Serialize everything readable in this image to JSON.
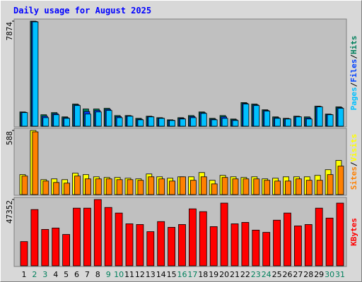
{
  "title": "Daily usage for August 2025",
  "chart_data": [
    {
      "type": "bar",
      "legend_separator": "/",
      "ylim": [
        0,
        7874
      ],
      "yticks": [
        7874
      ],
      "series": [
        {
          "name": "Hits",
          "color": "#00805c",
          "values": [
            1070,
            7874,
            860,
            1020,
            700,
            1660,
            1290,
            1290,
            1340,
            800,
            800,
            590,
            750,
            640,
            480,
            640,
            800,
            1070,
            590,
            800,
            540,
            1770,
            1660,
            1230,
            700,
            590,
            750,
            700,
            1500,
            910,
            1450
          ]
        },
        {
          "name": "Files",
          "color": "#0040ff",
          "values": [
            1040,
            7850,
            750,
            940,
            640,
            1600,
            1100,
            1180,
            1260,
            720,
            770,
            530,
            720,
            610,
            450,
            590,
            720,
            1010,
            530,
            700,
            480,
            1710,
            1600,
            1180,
            640,
            560,
            720,
            620,
            1470,
            880,
            1390
          ]
        },
        {
          "name": "Pages",
          "color": "#00c0ff",
          "values": [
            1020,
            7820,
            640,
            860,
            590,
            1550,
            910,
            1070,
            1180,
            640,
            750,
            480,
            700,
            590,
            430,
            540,
            640,
            960,
            480,
            590,
            430,
            1660,
            1550,
            1130,
            590,
            540,
            700,
            540,
            1450,
            860,
            1340
          ]
        }
      ]
    },
    {
      "type": "bar",
      "legend_separator": "/",
      "ylim": [
        0,
        588
      ],
      "yticks": [
        588
      ],
      "series": [
        {
          "name": "Visits",
          "color": "#ffff00",
          "values": [
            183,
            588,
            137,
            144,
            137,
            196,
            183,
            163,
            157,
            157,
            150,
            144,
            189,
            163,
            150,
            163,
            163,
            202,
            131,
            176,
            163,
            157,
            163,
            144,
            150,
            163,
            163,
            163,
            176,
            228,
            313
          ]
        },
        {
          "name": "Sites",
          "color": "#ff8000",
          "values": [
            170,
            575,
            124,
            111,
            105,
            170,
            144,
            144,
            144,
            137,
            137,
            131,
            163,
            144,
            124,
            163,
            131,
            163,
            98,
            157,
            144,
            144,
            144,
            131,
            124,
            124,
            144,
            131,
            131,
            183,
            261
          ]
        }
      ]
    },
    {
      "type": "bar",
      "ylim": [
        0,
        47352
      ],
      "yticks": [
        47352
      ],
      "categories": [
        "1",
        "2",
        "3",
        "4",
        "5",
        "6",
        "7",
        "8",
        "9",
        "10",
        "11",
        "12",
        "13",
        "14",
        "15",
        "16",
        "17",
        "18",
        "19",
        "20",
        "21",
        "22",
        "23",
        "24",
        "25",
        "26",
        "27",
        "28",
        "29",
        "30",
        "31"
      ],
      "category_colors": [
        "#000000",
        "#00805c",
        "#00805c",
        "#000000",
        "#000000",
        "#000000",
        "#000000",
        "#000000",
        "#00805c",
        "#00805c",
        "#000000",
        "#000000",
        "#000000",
        "#000000",
        "#000000",
        "#00805c",
        "#00805c",
        "#000000",
        "#000000",
        "#000000",
        "#000000",
        "#000000",
        "#00805c",
        "#00805c",
        "#000000",
        "#000000",
        "#000000",
        "#000000",
        "#000000",
        "#00805c",
        "#00805c"
      ],
      "series": [
        {
          "name": "KBytes",
          "color": "#ff0000",
          "values": [
            17300,
            40200,
            26000,
            27000,
            22400,
            41200,
            41200,
            47352,
            41700,
            37700,
            30000,
            29500,
            24400,
            31600,
            27500,
            29500,
            40700,
            38700,
            28000,
            44800,
            30000,
            31000,
            25500,
            23900,
            32600,
            37700,
            28500,
            29500,
            41200,
            34100,
            44800
          ]
        }
      ]
    }
  ]
}
